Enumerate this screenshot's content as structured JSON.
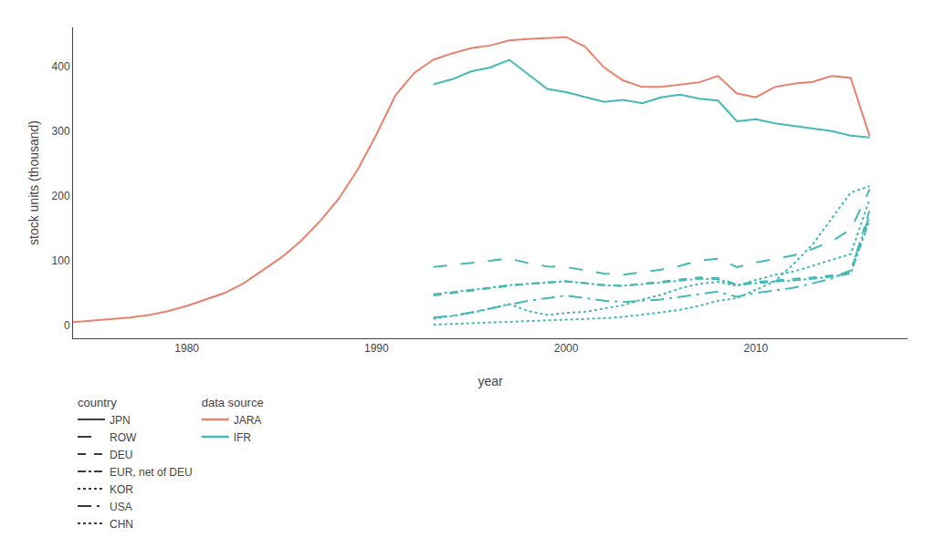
{
  "chart_data": {
    "type": "line",
    "xlabel": "year",
    "ylabel": "stock units (thousand)",
    "xlim": [
      1974,
      2018
    ],
    "ylim": [
      -20,
      460
    ],
    "xticks": [
      1980,
      1990,
      2000,
      2010
    ],
    "yticks": [
      0,
      100,
      200,
      300,
      400
    ],
    "grid": false,
    "legend": "bottom",
    "annotations": [
      "country",
      "data source"
    ],
    "sources": [
      {
        "name": "JARA",
        "color": "#e8816e"
      },
      {
        "name": "IFR",
        "color": "#45b8b8"
      }
    ],
    "x": [
      1974,
      1975,
      1976,
      1977,
      1978,
      1979,
      1980,
      1981,
      1982,
      1983,
      1984,
      1985,
      1986,
      1987,
      1988,
      1989,
      1990,
      1991,
      1992,
      1993,
      1994,
      1995,
      1996,
      1997,
      1998,
      1999,
      2000,
      2001,
      2002,
      2003,
      2004,
      2005,
      2006,
      2007,
      2008,
      2009,
      2010,
      2011,
      2012,
      2013,
      2014,
      2015,
      2016
    ],
    "series": [
      {
        "name": "JPN",
        "color": "#e8816e",
        "line_style": "solid",
        "values": [
          5,
          7,
          9,
          12,
          16,
          22,
          30,
          40,
          50,
          65,
          85,
          105,
          130,
          160,
          195,
          240,
          295,
          355,
          390,
          410,
          420,
          428,
          432,
          440,
          442,
          443,
          445,
          430,
          398,
          378,
          368,
          368,
          372,
          375,
          385,
          358,
          352,
          368,
          373,
          376,
          385,
          382,
          292
        ]
      },
      {
        "name": "JPN",
        "color": "#45b8b8",
        "line_style": "solid",
        "values": [
          null,
          null,
          null,
          null,
          null,
          null,
          null,
          null,
          null,
          null,
          null,
          null,
          null,
          null,
          null,
          null,
          null,
          null,
          null,
          372,
          380,
          392,
          398,
          410,
          388,
          365,
          360,
          352,
          345,
          348,
          343,
          352,
          356,
          350,
          347,
          315,
          318,
          312,
          308,
          305,
          300,
          293,
          290
        ]
      },
      {
        "name": "ROW",
        "color": "#45b8b8",
        "line_style": "longdash",
        "values": [
          null,
          null,
          null,
          null,
          null,
          null,
          null,
          null,
          null,
          null,
          null,
          null,
          null,
          null,
          null,
          null,
          null,
          null,
          null,
          90,
          93,
          97,
          100,
          103,
          96,
          91,
          90,
          85,
          80,
          78,
          82,
          86,
          92,
          100,
          103,
          90,
          97,
          102,
          108,
          118,
          130,
          148,
          210
        ]
      },
      {
        "name": "DEU",
        "color": "#45b8b8",
        "line_style": "dash",
        "values": [
          null,
          null,
          null,
          null,
          null,
          null,
          null,
          null,
          null,
          null,
          null,
          null,
          null,
          null,
          null,
          null,
          null,
          null,
          null,
          46,
          50,
          54,
          57,
          61,
          64,
          66,
          68,
          65,
          62,
          61,
          64,
          67,
          71,
          74,
          73,
          63,
          67,
          69,
          71,
          74,
          77,
          82,
          178
        ]
      },
      {
        "name": "EUR, net of DEU",
        "color": "#45b8b8",
        "line_style": "dashdot",
        "values": [
          null,
          null,
          null,
          null,
          null,
          null,
          null,
          null,
          null,
          null,
          null,
          null,
          null,
          null,
          null,
          null,
          null,
          null,
          null,
          48,
          51,
          55,
          58,
          62,
          64,
          66,
          68,
          65,
          62,
          61,
          63,
          66,
          69,
          72,
          71,
          62,
          65,
          67,
          69,
          72,
          75,
          80,
          163
        ]
      },
      {
        "name": "KOR",
        "color": "#45b8b8",
        "line_style": "dot",
        "values": [
          null,
          null,
          null,
          null,
          null,
          null,
          null,
          null,
          null,
          null,
          null,
          null,
          null,
          null,
          null,
          null,
          null,
          null,
          null,
          10,
          14,
          19,
          26,
          33,
          22,
          16,
          19,
          21,
          26,
          31,
          40,
          47,
          57,
          64,
          67,
          61,
          70,
          78,
          83,
          92,
          100,
          110,
          195
        ]
      },
      {
        "name": "USA",
        "color": "#45b8b8",
        "line_style": "longdashdot",
        "values": [
          null,
          null,
          null,
          null,
          null,
          null,
          null,
          null,
          null,
          null,
          null,
          null,
          null,
          null,
          null,
          null,
          null,
          null,
          null,
          12,
          15,
          20,
          26,
          32,
          38,
          42,
          46,
          42,
          38,
          36,
          38,
          40,
          44,
          48,
          52,
          44,
          50,
          54,
          58,
          65,
          72,
          85,
          170
        ]
      },
      {
        "name": "CHN",
        "color": "#45b8b8",
        "line_style": "dot",
        "values": [
          null,
          null,
          null,
          null,
          null,
          null,
          null,
          null,
          null,
          null,
          null,
          null,
          null,
          null,
          null,
          null,
          null,
          null,
          null,
          1,
          2,
          3,
          4,
          5,
          6,
          7,
          8,
          9,
          11,
          13,
          16,
          20,
          24,
          30,
          38,
          42,
          55,
          68,
          95,
          125,
          165,
          205,
          215
        ]
      }
    ]
  }
}
